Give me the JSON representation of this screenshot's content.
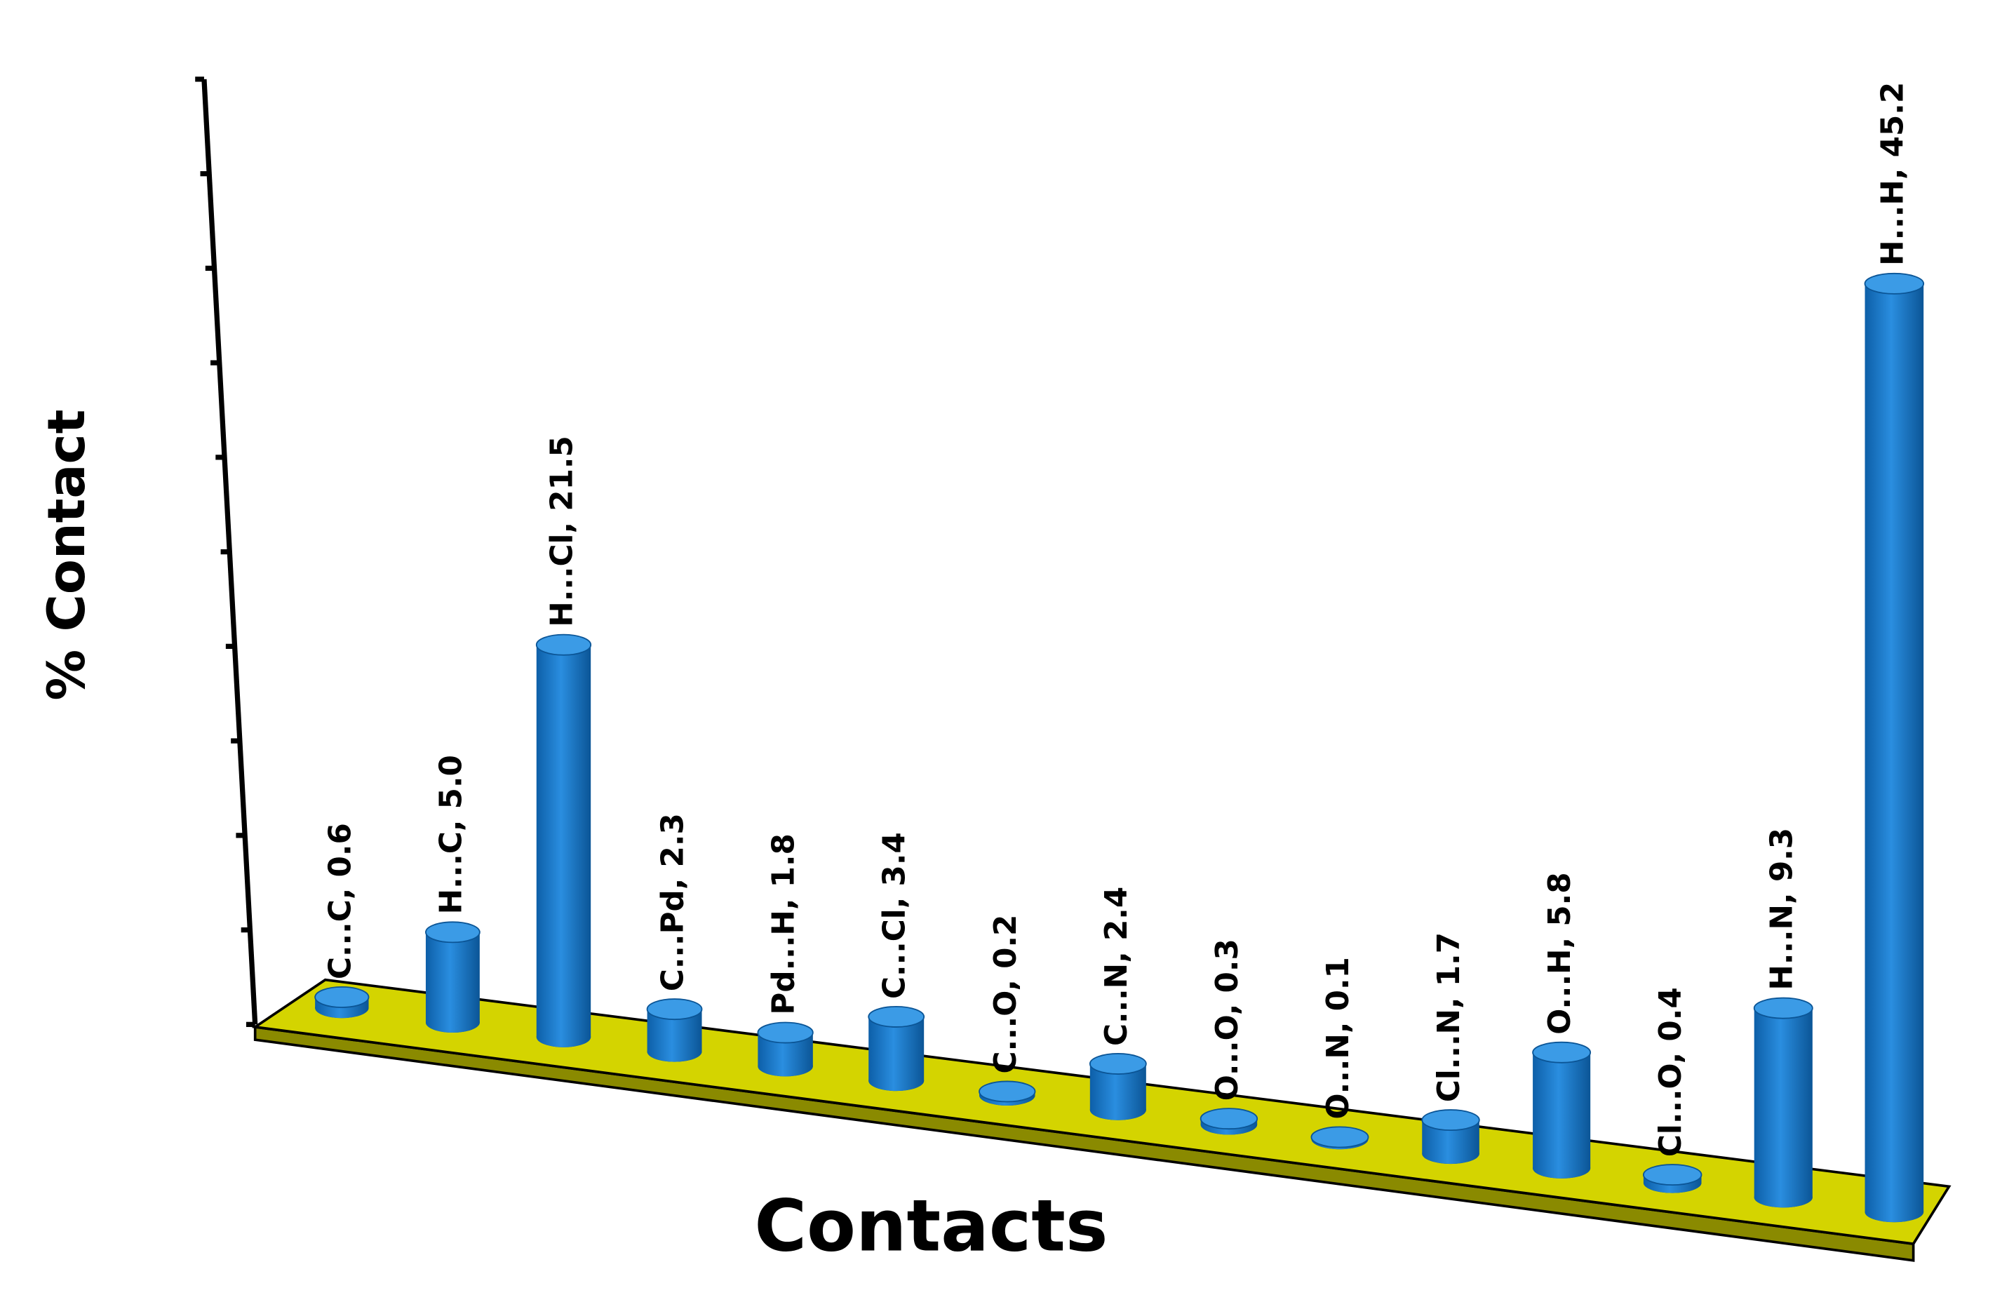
{
  "chart_data": {
    "type": "bar3d",
    "y_label": "% Contact",
    "x_label": "Contacts",
    "values": [
      0.6,
      5.0,
      21.5,
      2.3,
      1.8,
      3.4,
      0.2,
      2.4,
      0.3,
      0.1,
      1.7,
      5.8,
      0.4,
      9.3,
      45.2
    ],
    "value_labels": [
      "C...C, 0.6",
      "H...C, 5.0",
      "H...Cl, 21.5",
      "C...Pd, 2.3",
      "Pd...H, 1.8",
      "C...Cl, 3.4",
      "C...O, 0.2",
      "C...N, 2.4",
      "O...O, 0.3",
      "O...N, 0.1",
      "Cl...N, 1.7",
      "O...H, 5.8",
      "Cl...O, 0.4",
      "H...N, 9.3",
      "H...H, 45.2"
    ],
    "color": "#1a78c8",
    "floor_color": "#d4d400",
    "ylim": [
      0,
      50
    ],
    "yticks": [
      0,
      5,
      10,
      15,
      20,
      25,
      30,
      35,
      40,
      45,
      50
    ]
  }
}
